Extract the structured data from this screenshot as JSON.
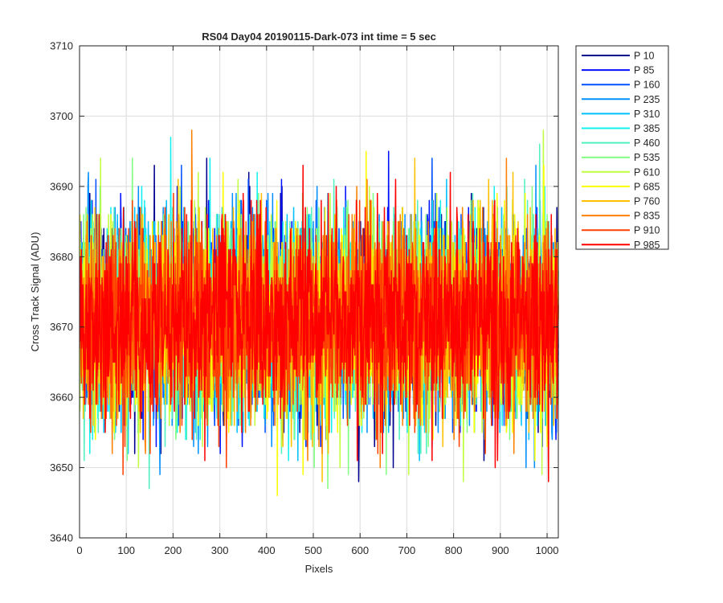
{
  "chart_data": {
    "type": "line",
    "title": "RS04 Day04 20190115-Dark-073 int time = 5 sec",
    "xlabel": "Pixels",
    "ylabel": "Cross Track Signal (ADU)",
    "xlim": [
      0,
      1024
    ],
    "ylim": [
      3640,
      3710
    ],
    "xticks": [
      0,
      100,
      200,
      300,
      400,
      500,
      600,
      700,
      800,
      900,
      1000
    ],
    "yticks": [
      3640,
      3650,
      3660,
      3670,
      3680,
      3690,
      3700,
      3710
    ],
    "grid": true,
    "legend_position": "outside-right",
    "x": {
      "start": 1,
      "end": 1024,
      "step": 1
    },
    "noise": {
      "mean": 3671,
      "std": 7.5,
      "min": 3641,
      "max": 3701
    },
    "series": [
      {
        "name": "P 10",
        "color": "#00008F"
      },
      {
        "name": "P 85",
        "color": "#0010FF"
      },
      {
        "name": "P 160",
        "color": "#0050FF"
      },
      {
        "name": "P 235",
        "color": "#0090FF"
      },
      {
        "name": "P 310",
        "color": "#00C0FF"
      },
      {
        "name": "P 385",
        "color": "#10F0F0"
      },
      {
        "name": "P 460",
        "color": "#50F0C0"
      },
      {
        "name": "P 535",
        "color": "#80FF80"
      },
      {
        "name": "P 610",
        "color": "#C0FF40"
      },
      {
        "name": "P 685",
        "color": "#FFFF00"
      },
      {
        "name": "P 760",
        "color": "#FFC000"
      },
      {
        "name": "P 835",
        "color": "#FF8000"
      },
      {
        "name": "P 910",
        "color": "#FF4000"
      },
      {
        "name": "P 985",
        "color": "#FF0000"
      }
    ]
  }
}
